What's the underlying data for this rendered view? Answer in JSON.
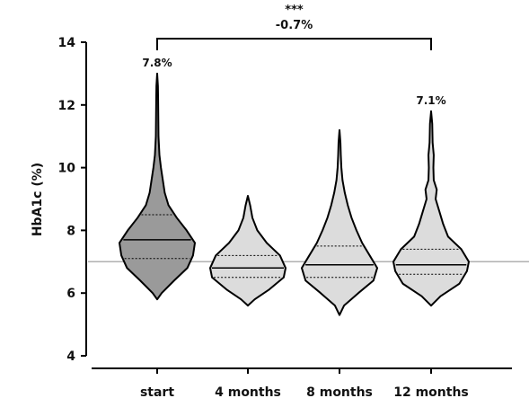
{
  "chart_data": {
    "type": "violin",
    "ylabel": "HbA1c (%)",
    "ylim": [
      4,
      14
    ],
    "yticks": [
      "4",
      "6",
      "8",
      "10",
      "12",
      "14"
    ],
    "reference_line": 7.0,
    "categories": [
      "start",
      "4 months",
      "8 months",
      "12 months"
    ],
    "violins": [
      {
        "category": "start",
        "color": "#9a9a9a",
        "min": 5.8,
        "max": 13.0,
        "q1": 7.1,
        "median": 7.7,
        "q3": 8.5,
        "density": [
          [
            5.8,
            0.0
          ],
          [
            6.0,
            0.12
          ],
          [
            6.4,
            0.45
          ],
          [
            6.8,
            0.8
          ],
          [
            7.2,
            0.95
          ],
          [
            7.6,
            1.0
          ],
          [
            8.0,
            0.78
          ],
          [
            8.4,
            0.52
          ],
          [
            8.8,
            0.3
          ],
          [
            9.2,
            0.2
          ],
          [
            9.6,
            0.15
          ],
          [
            10.0,
            0.1
          ],
          [
            10.4,
            0.06
          ],
          [
            11.0,
            0.035
          ],
          [
            11.6,
            0.03
          ],
          [
            12.2,
            0.025
          ],
          [
            12.6,
            0.02
          ],
          [
            13.0,
            0.0
          ]
        ]
      },
      {
        "category": "4 months",
        "color": "#dcdcdc",
        "min": 5.6,
        "max": 9.1,
        "q1": 6.5,
        "median": 6.8,
        "q3": 7.2,
        "density": [
          [
            5.6,
            0.0
          ],
          [
            5.8,
            0.18
          ],
          [
            6.1,
            0.55
          ],
          [
            6.5,
            0.95
          ],
          [
            6.8,
            1.0
          ],
          [
            7.2,
            0.85
          ],
          [
            7.6,
            0.5
          ],
          [
            8.0,
            0.25
          ],
          [
            8.4,
            0.12
          ],
          [
            8.8,
            0.06
          ],
          [
            9.1,
            0.0
          ]
        ]
      },
      {
        "category": "8 months",
        "color": "#dcdcdc",
        "min": 5.3,
        "max": 11.2,
        "q1": 6.5,
        "median": 6.9,
        "q3": 7.5,
        "density": [
          [
            5.3,
            0.0
          ],
          [
            5.6,
            0.12
          ],
          [
            6.0,
            0.5
          ],
          [
            6.4,
            0.9
          ],
          [
            6.8,
            1.0
          ],
          [
            7.2,
            0.8
          ],
          [
            7.6,
            0.6
          ],
          [
            8.0,
            0.45
          ],
          [
            8.4,
            0.32
          ],
          [
            8.8,
            0.22
          ],
          [
            9.2,
            0.14
          ],
          [
            9.6,
            0.08
          ],
          [
            10.0,
            0.05
          ],
          [
            10.4,
            0.035
          ],
          [
            10.8,
            0.025
          ],
          [
            11.2,
            0.0
          ]
        ]
      },
      {
        "category": "12 months",
        "color": "#dcdcdc",
        "min": 5.6,
        "max": 11.8,
        "q1": 6.6,
        "median": 6.9,
        "q3": 7.4,
        "density": [
          [
            5.6,
            0.0
          ],
          [
            5.9,
            0.25
          ],
          [
            6.3,
            0.75
          ],
          [
            6.7,
            0.95
          ],
          [
            7.0,
            1.0
          ],
          [
            7.4,
            0.8
          ],
          [
            7.8,
            0.45
          ],
          [
            8.2,
            0.32
          ],
          [
            8.6,
            0.22
          ],
          [
            9.0,
            0.12
          ],
          [
            9.3,
            0.15
          ],
          [
            9.6,
            0.07
          ],
          [
            10.0,
            0.06
          ],
          [
            10.4,
            0.07
          ],
          [
            10.8,
            0.04
          ],
          [
            11.4,
            0.03
          ],
          [
            11.8,
            0.0
          ]
        ]
      }
    ],
    "value_labels": [
      {
        "category": "start",
        "text": "7.8%"
      },
      {
        "category": "12 months",
        "text": "7.1%"
      }
    ],
    "comparison": {
      "from": "start",
      "to": "12 months",
      "stars": "***",
      "label": "-0.7%"
    }
  }
}
